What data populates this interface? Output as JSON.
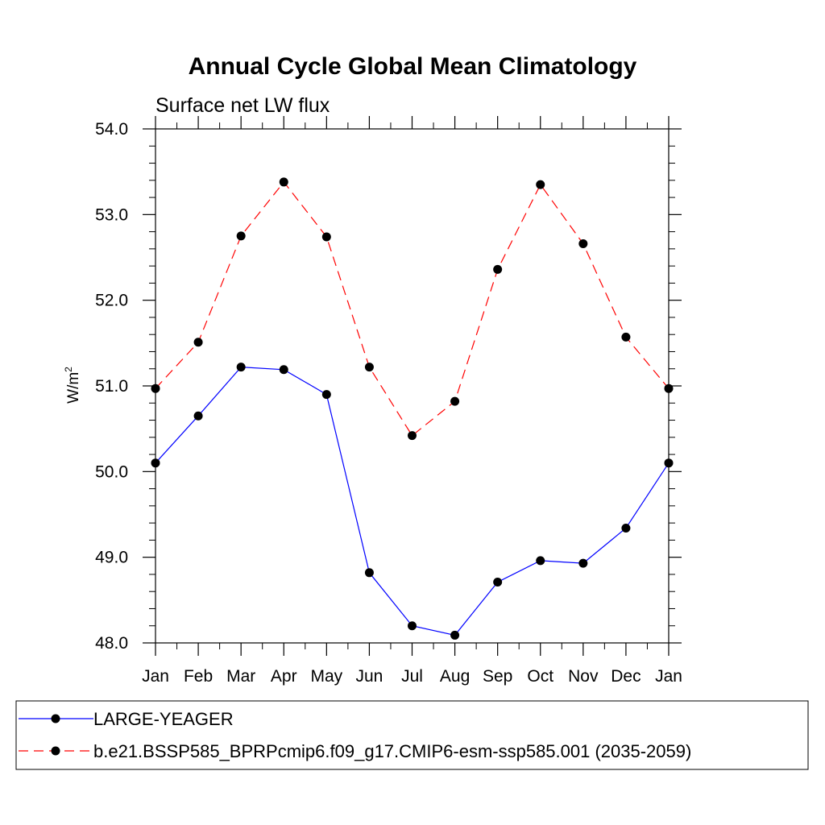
{
  "chart_data": {
    "type": "line",
    "title": "Annual Cycle Global Mean Climatology",
    "subtitle": "Surface net LW flux",
    "ylabel_base": "W/m",
    "ylabel_exp": "2",
    "xlabel": "",
    "categories": [
      "Jan",
      "Feb",
      "Mar",
      "Apr",
      "May",
      "Jun",
      "Jul",
      "Aug",
      "Sep",
      "Oct",
      "Nov",
      "Dec",
      "Jan"
    ],
    "ylim": [
      48.0,
      54.0
    ],
    "yticks": [
      48.0,
      49.0,
      50.0,
      51.0,
      52.0,
      53.0,
      54.0
    ],
    "ytick_labels": [
      "48.0",
      "49.0",
      "50.0",
      "51.0",
      "52.0",
      "53.0",
      "54.0"
    ],
    "series": [
      {
        "name": "LARGE-YEAGER",
        "color": "#0000ff",
        "dash": "solid",
        "values": [
          50.1,
          50.65,
          51.22,
          51.19,
          50.9,
          48.82,
          48.2,
          48.09,
          48.71,
          48.96,
          48.93,
          49.34,
          50.1
        ]
      },
      {
        "name": "b.e21.BSSP585_BPRPcmip6.f09_g17.CMIP6-esm-ssp585.001 (2035-2059)",
        "color": "#ff0000",
        "dash": "dashed",
        "values": [
          50.97,
          51.51,
          52.75,
          53.38,
          52.74,
          51.22,
          50.42,
          50.82,
          52.36,
          53.35,
          52.66,
          51.57,
          50.97
        ]
      }
    ],
    "legend_position": "bottom"
  }
}
